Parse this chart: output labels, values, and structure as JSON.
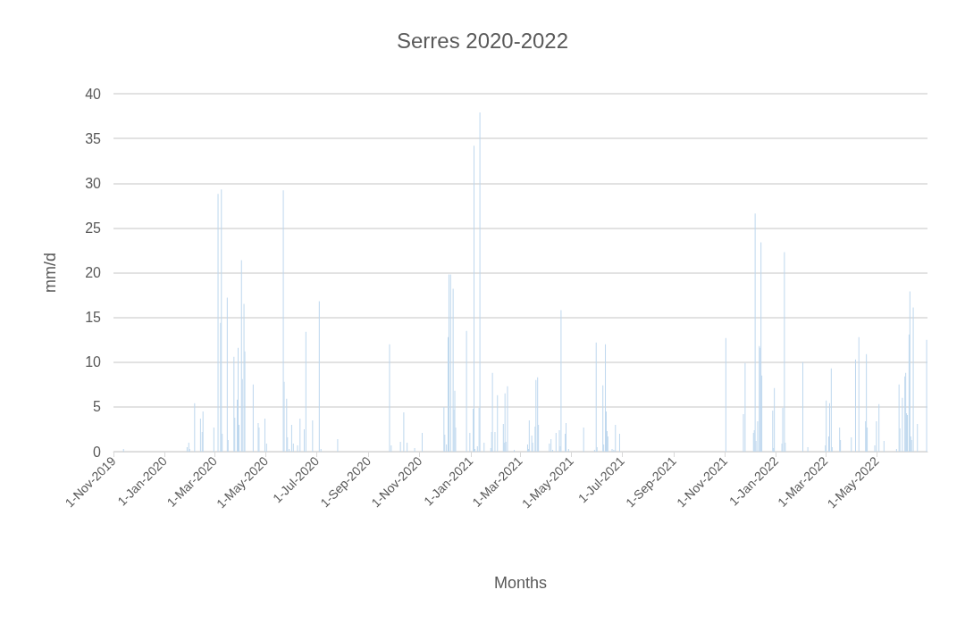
{
  "chart_data": {
    "type": "bar",
    "title": "Serres 2020-2022",
    "xlabel": "Months",
    "ylabel": "mm/d",
    "x": [
      "2019-11-13",
      "2020-01-28",
      "2020-01-30",
      "2020-01-31",
      "2020-02-06",
      "2020-02-13",
      "2020-02-15",
      "2020-02-16",
      "2020-02-29",
      "2020-03-05",
      "2020-03-08",
      "2020-03-09",
      "2020-03-10",
      "2020-03-16",
      "2020-03-17",
      "2020-03-24",
      "2020-03-25",
      "2020-03-28",
      "2020-03-29",
      "2020-03-30",
      "2020-04-02",
      "2020-04-03",
      "2020-04-05",
      "2020-04-06",
      "2020-04-16",
      "2020-04-22",
      "2020-04-23",
      "2020-04-30",
      "2020-05-02",
      "2020-05-22",
      "2020-05-23",
      "2020-05-26",
      "2020-05-27",
      "2020-05-29",
      "2020-06-01",
      "2020-06-03",
      "2020-06-08",
      "2020-06-11",
      "2020-06-16",
      "2020-06-18",
      "2020-06-26",
      "2020-07-04",
      "2020-07-06",
      "2020-07-26",
      "2020-09-26",
      "2020-09-28",
      "2020-10-09",
      "2020-10-13",
      "2020-10-17",
      "2020-10-26",
      "2020-11-04",
      "2020-11-30",
      "2020-12-01",
      "2020-12-03",
      "2020-12-05",
      "2020-12-06",
      "2020-12-08",
      "2020-12-11",
      "2020-12-12",
      "2020-12-13",
      "2020-12-14",
      "2020-12-27",
      "2020-12-31",
      "2021-01-04",
      "2021-01-05",
      "2021-01-06",
      "2021-01-09",
      "2021-01-11",
      "2021-01-12",
      "2021-01-17",
      "2021-01-25",
      "2021-01-26",
      "2021-01-27",
      "2021-01-30",
      "2021-02-02",
      "2021-02-09",
      "2021-02-10",
      "2021-02-11",
      "2021-02-12",
      "2021-02-14",
      "2021-02-22",
      "2021-03-10",
      "2021-03-11",
      "2021-03-12",
      "2021-03-15",
      "2021-03-16",
      "2021-03-19",
      "2021-03-20",
      "2021-03-22",
      "2021-03-23",
      "2021-04-05",
      "2021-04-07",
      "2021-04-09",
      "2021-04-13",
      "2021-04-17",
      "2021-04-18",
      "2021-04-19",
      "2021-04-24",
      "2021-04-25",
      "2021-04-28",
      "2021-05-16",
      "2021-05-29",
      "2021-05-31",
      "2021-06-01",
      "2021-06-08",
      "2021-06-09",
      "2021-06-11",
      "2021-06-12",
      "2021-06-13",
      "2021-06-14",
      "2021-06-19",
      "2021-06-21",
      "2021-06-23",
      "2021-06-28",
      "2021-11-02",
      "2021-11-23",
      "2021-11-25",
      "2021-12-05",
      "2021-12-06",
      "2021-12-07",
      "2021-12-08",
      "2021-12-10",
      "2021-12-12",
      "2021-12-13",
      "2021-12-14",
      "2021-12-15",
      "2021-12-28",
      "2021-12-29",
      "2021-12-30",
      "2022-01-08",
      "2022-01-09",
      "2022-01-11",
      "2022-01-12",
      "2022-02-02",
      "2022-02-08",
      "2022-03-01",
      "2022-03-02",
      "2022-03-05",
      "2022-03-06",
      "2022-03-08",
      "2022-03-09",
      "2022-03-18",
      "2022-03-19",
      "2022-04-01",
      "2022-04-06",
      "2022-04-10",
      "2022-04-18",
      "2022-04-19",
      "2022-04-20",
      "2022-04-29",
      "2022-05-01",
      "2022-05-04",
      "2022-05-10",
      "2022-05-25",
      "2022-05-28",
      "2022-05-29",
      "2022-06-01",
      "2022-06-04",
      "2022-06-05",
      "2022-06-06",
      "2022-06-07",
      "2022-06-09",
      "2022-06-10",
      "2022-06-11",
      "2022-06-12",
      "2022-06-14",
      "2022-06-19",
      "2022-06-30"
    ],
    "values": [
      0.3,
      0.5,
      1.0,
      0.3,
      5.4,
      3.7,
      2.2,
      4.5,
      2.7,
      28.8,
      14.4,
      29.3,
      2.0,
      17.2,
      1.3,
      10.6,
      3.8,
      5.8,
      11.6,
      3.0,
      21.4,
      8.1,
      16.5,
      11.2,
      7.5,
      3.2,
      2.7,
      3.7,
      0.9,
      29.2,
      7.8,
      5.9,
      1.6,
      0.3,
      3.0,
      0.9,
      0.7,
      3.7,
      2.5,
      13.4,
      3.5,
      16.8,
      0.3,
      1.4,
      12.0,
      0.7,
      1.1,
      4.4,
      1.0,
      0.4,
      2.1,
      5.0,
      1.9,
      0.8,
      12.8,
      19.8,
      19.8,
      18.2,
      4.7,
      6.8,
      2.7,
      13.5,
      2.1,
      4.8,
      34.2,
      0.3,
      0.6,
      4.9,
      37.9,
      1.0,
      0.4,
      2.2,
      8.8,
      2.2,
      6.3,
      3.1,
      1.0,
      6.5,
      1.1,
      7.3,
      0.2,
      0.8,
      0.3,
      3.5,
      1.8,
      1.0,
      2.8,
      8.0,
      8.3,
      3.0,
      0.9,
      1.4,
      0.2,
      2.1,
      2.4,
      0.6,
      15.8,
      2.0,
      3.2,
      0.3,
      2.7,
      0.2,
      12.2,
      0.5,
      7.4,
      0.8,
      12.0,
      4.5,
      2.3,
      1.7,
      0.3,
      0.2,
      3.0,
      2.0,
      12.7,
      4.2,
      9.9,
      2.1,
      2.4,
      26.6,
      1.2,
      3.4,
      11.8,
      11.6,
      23.4,
      8.5,
      4.6,
      0.4,
      7.1,
      0.9,
      4.9,
      22.3,
      1.0,
      10.0,
      0.5,
      0.7,
      5.7,
      1.7,
      5.4,
      9.3,
      0.5,
      2.7,
      1.3,
      1.6,
      10.3,
      12.8,
      3.4,
      10.9,
      2.7,
      0.7,
      3.4,
      5.3,
      1.2,
      0.3,
      7.5,
      2.6,
      6.0,
      8.4,
      8.8,
      4.3,
      4.1,
      13.1,
      17.9,
      1.7,
      1.3,
      16.1,
      3.1,
      12.5
    ],
    "color": "#bdd7ee",
    "xlim": [
      "2019-11-01",
      "2022-07-01"
    ],
    "xticks": [
      {
        "value": "2019-11-01",
        "label": "1-Nov-2019"
      },
      {
        "value": "2020-01-01",
        "label": "1-Jan-2020"
      },
      {
        "value": "2020-03-01",
        "label": "1-Mar-2020"
      },
      {
        "value": "2020-05-01",
        "label": "1-May-2020"
      },
      {
        "value": "2020-07-01",
        "label": "1-Jul-2020"
      },
      {
        "value": "2020-09-01",
        "label": "1-Sep-2020"
      },
      {
        "value": "2020-11-01",
        "label": "1-Nov-2020"
      },
      {
        "value": "2021-01-01",
        "label": "1-Jan-2021"
      },
      {
        "value": "2021-03-01",
        "label": "1-Mar-2021"
      },
      {
        "value": "2021-05-01",
        "label": "1-May-2021"
      },
      {
        "value": "2021-07-01",
        "label": "1-Jul-2021"
      },
      {
        "value": "2021-09-01",
        "label": "1-Sep-2021"
      },
      {
        "value": "2021-11-01",
        "label": "1-Nov-2021"
      },
      {
        "value": "2022-01-01",
        "label": "1-Jan-2022"
      },
      {
        "value": "2022-03-01",
        "label": "1-Mar-2022"
      },
      {
        "value": "2022-05-01",
        "label": "1-May-2022"
      }
    ],
    "ylim": [
      0,
      40
    ],
    "yticks": [
      0,
      5,
      10,
      15,
      20,
      25,
      30,
      35,
      40
    ],
    "grid": "y"
  }
}
